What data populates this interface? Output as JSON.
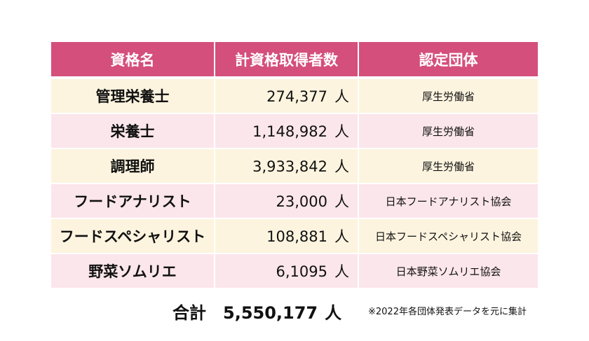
{
  "table": {
    "headers": [
      "資格名",
      "計資格取得者数",
      "認定団体"
    ],
    "rows": [
      {
        "name": "管理栄養士",
        "count": "274,377",
        "unit": "人",
        "org": "厚生労働省"
      },
      {
        "name": "栄養士",
        "count": "1,148,982",
        "unit": "人",
        "org": "厚生労働省"
      },
      {
        "name": "調理師",
        "count": "3,933,842",
        "unit": "人",
        "org": "厚生労働省"
      },
      {
        "name": "フードアナリスト",
        "count": "23,000",
        "unit": "人",
        "org": "日本フードアナリスト協会"
      },
      {
        "name": "フードスペシャリスト",
        "count": "108,881",
        "unit": "人",
        "org": "日本フードスペシャリスト協会"
      },
      {
        "name": "野菜ソムリエ",
        "count": "6,1095",
        "unit": "人",
        "org": "日本野菜ソムリエ協会"
      }
    ]
  },
  "total": {
    "label": "合計",
    "value": "5,550,177",
    "unit": "人"
  },
  "note": "※2022年各団体発表データを元に集計",
  "colors": {
    "header_bg": "#d44f7b",
    "row_odd_bg": "#fdf4df",
    "row_even_bg": "#fbe6eb"
  }
}
